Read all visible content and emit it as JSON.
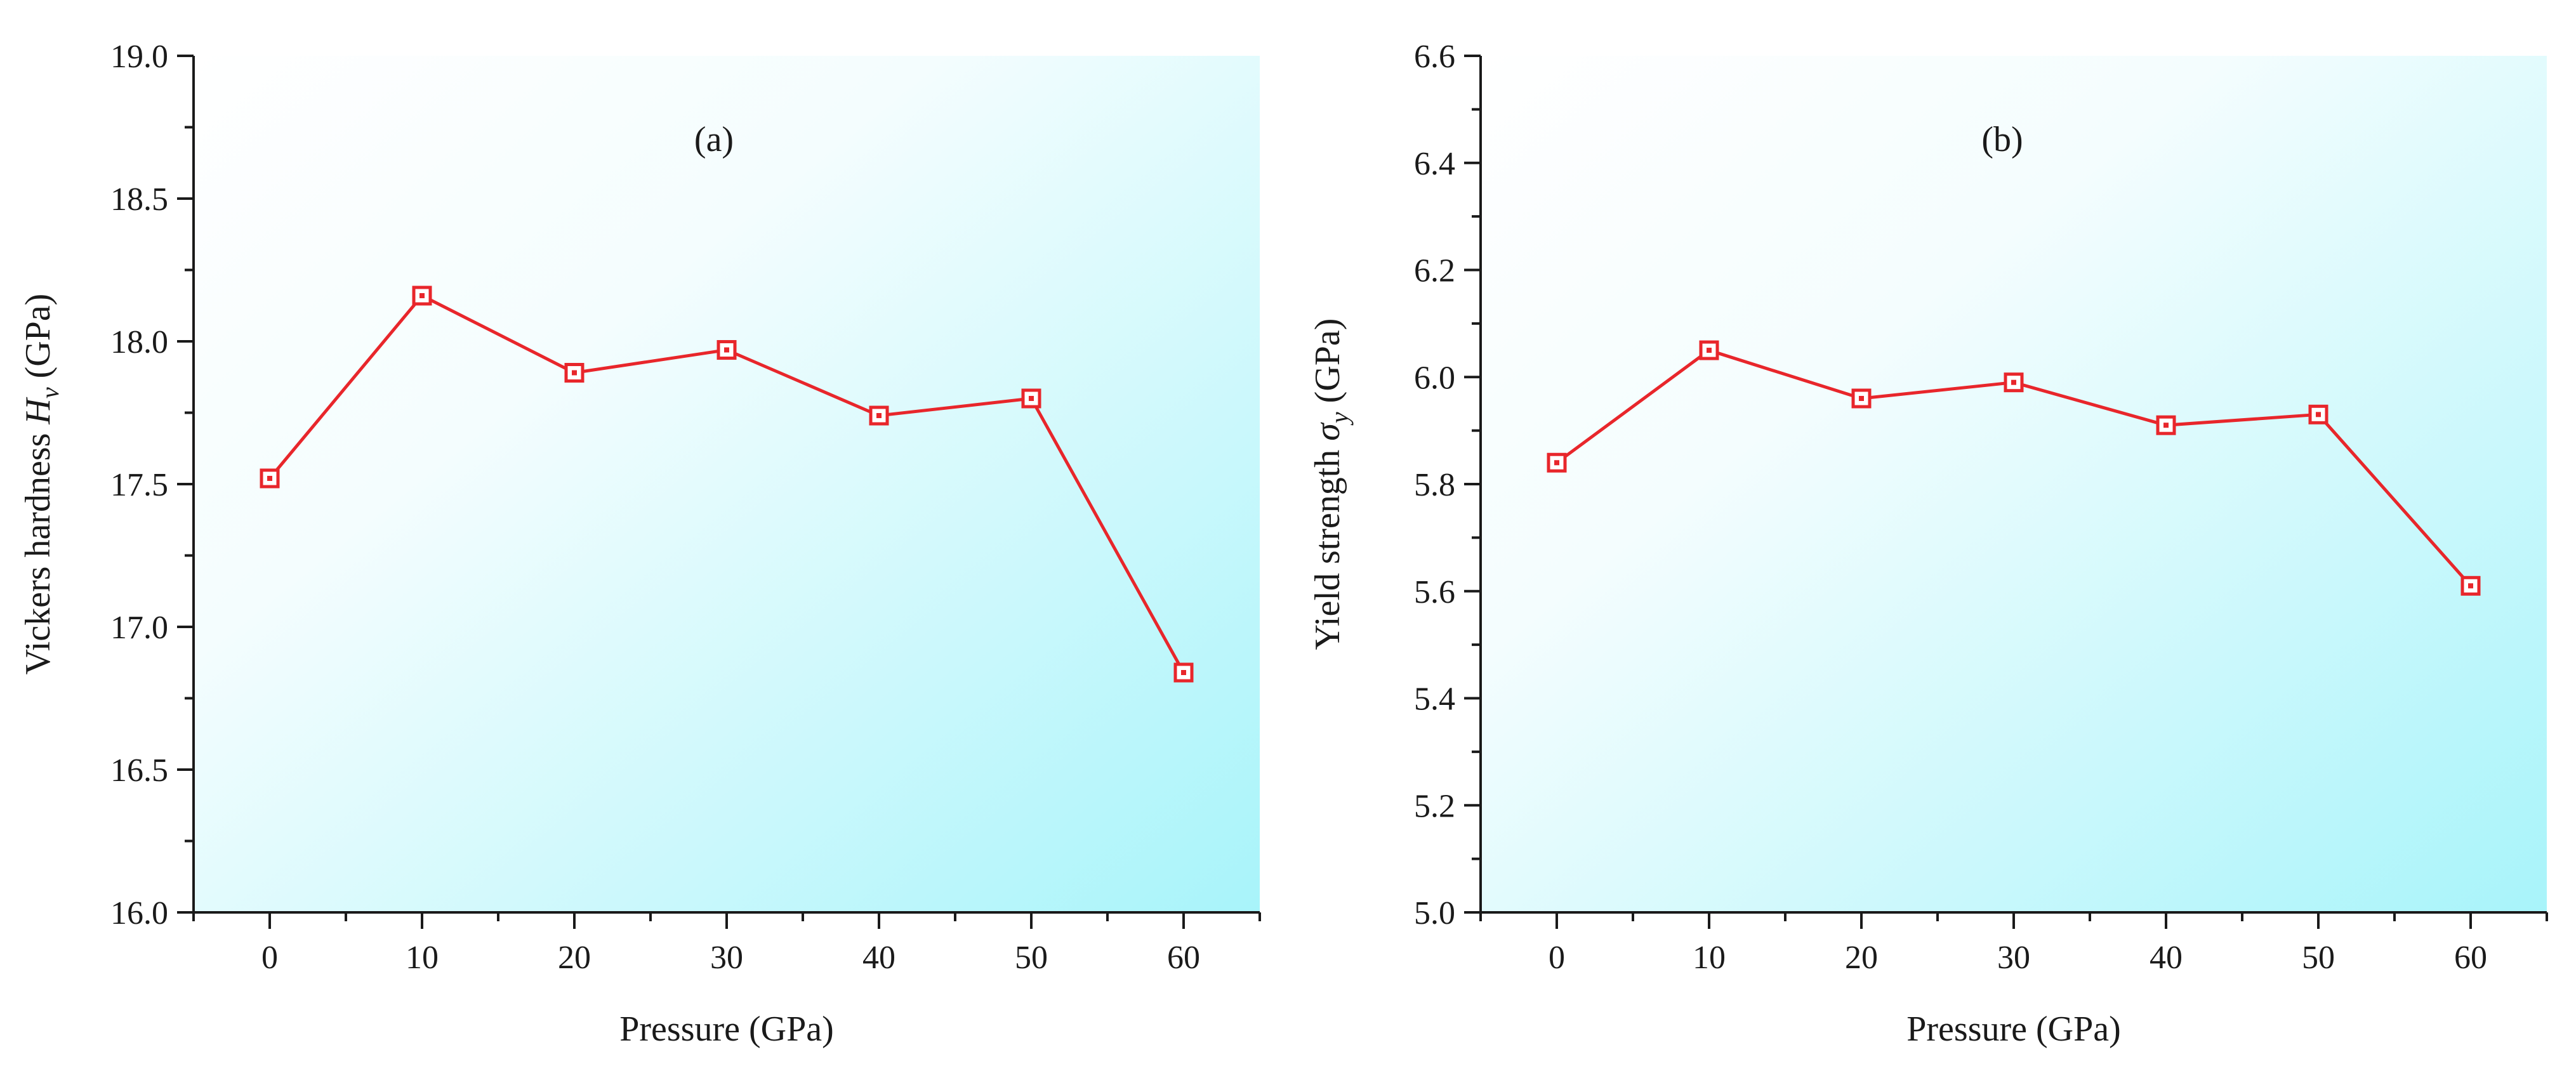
{
  "colors": {
    "series": "#e8262b",
    "axis": "#1a1a1a",
    "gradient_light": "#ffffff",
    "gradient_dark": "#a8f4fa"
  },
  "chart_data": [
    {
      "type": "line",
      "panel_label": "(a)",
      "title": "",
      "xlabel": "Pressure (GPa)",
      "ylabel_main": "Vickers hardness ",
      "ylabel_symbol": "H",
      "ylabel_subscript": "v",
      "ylabel_unit": " (GPa)",
      "x": [
        0,
        10,
        20,
        30,
        40,
        50,
        60
      ],
      "series": [
        {
          "name": "Vickers hardness",
          "values": [
            17.52,
            18.16,
            17.89,
            17.97,
            17.74,
            17.8,
            16.84
          ]
        }
      ],
      "xlim": [
        -5,
        65
      ],
      "ylim": [
        16.0,
        19.0
      ],
      "xticks": [
        0,
        10,
        20,
        30,
        40,
        50,
        60
      ],
      "xtick_labels": [
        "0",
        "10",
        "20",
        "30",
        "40",
        "50",
        "60"
      ],
      "yticks": [
        16.0,
        16.5,
        17.0,
        17.5,
        18.0,
        18.5,
        19.0
      ],
      "ytick_labels": [
        "16.0",
        "16.5",
        "17.0",
        "17.5",
        "18.0",
        "18.5",
        "19.0"
      ],
      "grid": false,
      "marker": "square-dot"
    },
    {
      "type": "line",
      "panel_label": "(b)",
      "title": "",
      "xlabel": "Pressure (GPa)",
      "ylabel_main": "Yield strength ",
      "ylabel_symbol": "σ",
      "ylabel_subscript": "y",
      "ylabel_unit": " (GPa)",
      "x": [
        0,
        10,
        20,
        30,
        40,
        50,
        60
      ],
      "series": [
        {
          "name": "Yield strength",
          "values": [
            5.84,
            6.05,
            5.96,
            5.99,
            5.91,
            5.93,
            5.61
          ]
        }
      ],
      "xlim": [
        -5,
        65
      ],
      "ylim": [
        5.0,
        6.6
      ],
      "xticks": [
        0,
        10,
        20,
        30,
        40,
        50,
        60
      ],
      "xtick_labels": [
        "0",
        "10",
        "20",
        "30",
        "40",
        "50",
        "60"
      ],
      "yticks": [
        5.0,
        5.2,
        5.4,
        5.6,
        5.8,
        6.0,
        6.2,
        6.4,
        6.6
      ],
      "ytick_labels": [
        "5.0",
        "5.2",
        "5.4",
        "5.6",
        "5.8",
        "6.0",
        "6.2",
        "6.4",
        "6.6"
      ],
      "grid": false,
      "marker": "square-dot"
    }
  ]
}
